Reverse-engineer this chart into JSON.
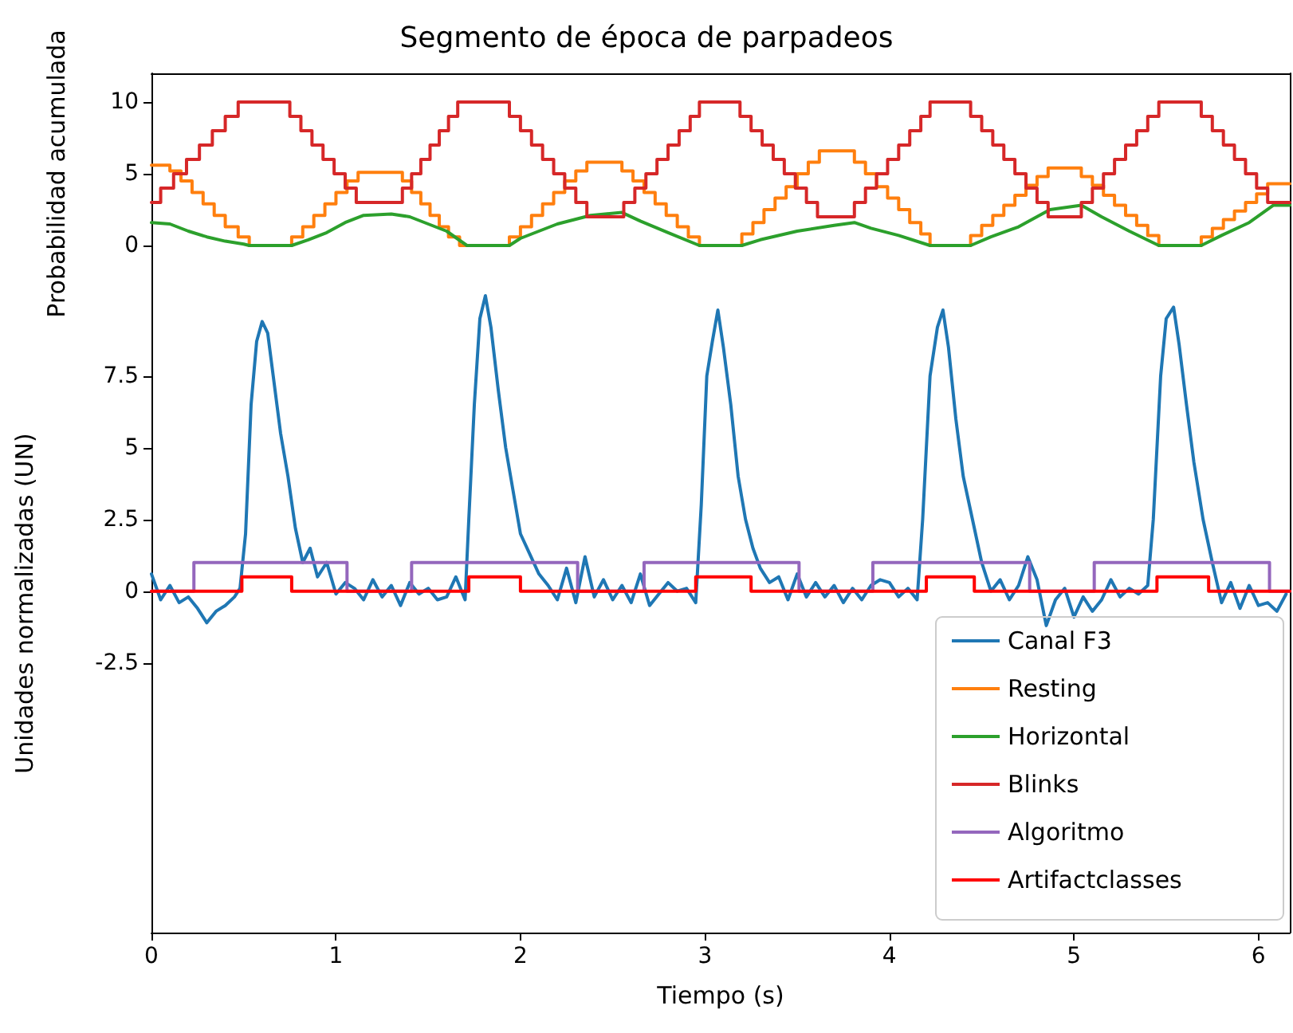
{
  "chart_data": [
    {
      "type": "step",
      "title": "Segmento de época de parpadeos",
      "ylabel": "Probabilidad acumulada",
      "xlim": [
        0,
        6.17
      ],
      "ylim": [
        -2,
        12
      ],
      "yticks": [
        0,
        5,
        10
      ],
      "tick_labels": "y",
      "grid": false,
      "legend": "bottom right",
      "marker": "none",
      "line_style": "solid",
      "series": [
        {
          "name": "Resting",
          "color": "#ff7f0e",
          "x": [
            0,
            0.1,
            0.16,
            0.22,
            0.28,
            0.34,
            0.4,
            0.47,
            0.53,
            0.76,
            0.82,
            0.88,
            0.94,
            1.0,
            1.06,
            1.12,
            1.36,
            1.41,
            1.46,
            1.51,
            1.56,
            1.61,
            1.67,
            1.94,
            2.0,
            2.06,
            2.12,
            2.18,
            2.24,
            2.3,
            2.36,
            2.55,
            2.61,
            2.67,
            2.73,
            2.79,
            2.85,
            2.91,
            2.97,
            3.2,
            3.26,
            3.32,
            3.38,
            3.44,
            3.5,
            3.56,
            3.62,
            3.81,
            3.87,
            3.93,
            3.99,
            4.05,
            4.11,
            4.17,
            4.22,
            4.44,
            4.5,
            4.56,
            4.62,
            4.68,
            4.74,
            4.8,
            4.86,
            5.04,
            5.1,
            5.16,
            5.22,
            5.28,
            5.34,
            5.4,
            5.46,
            5.69,
            5.75,
            5.81,
            5.87,
            5.93,
            5.99,
            6.05,
            6.17
          ],
          "values": [
            5.6,
            5.2,
            4.5,
            3.7,
            2.9,
            2.1,
            1.3,
            0.6,
            0,
            0.6,
            1.3,
            2.1,
            2.9,
            3.7,
            4.5,
            5.1,
            4.5,
            3.7,
            2.9,
            2.1,
            1.3,
            0.6,
            0,
            0.6,
            1.3,
            2.1,
            2.9,
            3.7,
            4.5,
            5.2,
            5.8,
            5.2,
            4.5,
            3.7,
            2.9,
            2.1,
            1.3,
            0.6,
            0,
            0.8,
            1.6,
            2.5,
            3.3,
            4.1,
            5.0,
            5.8,
            6.6,
            5.8,
            5.0,
            4.1,
            3.3,
            2.5,
            1.6,
            0.8,
            0,
            0.7,
            1.4,
            2.1,
            2.8,
            3.5,
            4.2,
            4.8,
            5.4,
            4.8,
            4.2,
            3.5,
            2.8,
            2.1,
            1.4,
            0.7,
            0,
            0.6,
            1.2,
            1.8,
            2.4,
            3.0,
            3.6,
            4.3,
            4.3
          ]
        },
        {
          "name": "Horizontal",
          "color": "#2ca02c",
          "type": "line",
          "x": [
            0,
            0.1,
            0.2,
            0.3,
            0.4,
            0.5,
            0.53,
            0.76,
            0.85,
            0.95,
            1.05,
            1.15,
            1.3,
            1.4,
            1.5,
            1.6,
            1.71,
            1.94,
            2.0,
            2.1,
            2.2,
            2.38,
            2.55,
            2.65,
            2.8,
            2.97,
            3.2,
            3.3,
            3.5,
            3.7,
            3.81,
            3.9,
            4.05,
            4.22,
            4.44,
            4.55,
            4.7,
            4.87,
            5.04,
            5.15,
            5.3,
            5.46,
            5.69,
            5.8,
            5.95,
            6.08,
            6.17
          ],
          "values": [
            1.6,
            1.5,
            1.0,
            0.6,
            0.3,
            0.1,
            0,
            0,
            0.4,
            0.9,
            1.6,
            2.1,
            2.2,
            2.0,
            1.5,
            1.0,
            0,
            0,
            0.5,
            1.0,
            1.5,
            2.1,
            2.3,
            1.7,
            0.9,
            0,
            0,
            0.4,
            1.0,
            1.4,
            1.6,
            1.2,
            0.7,
            0,
            0,
            0.6,
            1.3,
            2.5,
            2.8,
            2.0,
            1.0,
            0,
            0,
            0.7,
            1.6,
            2.8,
            2.8
          ]
        },
        {
          "name": "Blinks",
          "color": "#d62728",
          "x": [
            0,
            0.05,
            0.12,
            0.19,
            0.26,
            0.33,
            0.4,
            0.47,
            0.75,
            0.81,
            0.87,
            0.93,
            0.99,
            1.05,
            1.11,
            1.36,
            1.41,
            1.46,
            1.51,
            1.56,
            1.61,
            1.66,
            1.94,
            2.0,
            2.06,
            2.12,
            2.18,
            2.24,
            2.3,
            2.36,
            2.56,
            2.62,
            2.68,
            2.74,
            2.8,
            2.86,
            2.92,
            2.97,
            3.19,
            3.25,
            3.31,
            3.37,
            3.43,
            3.49,
            3.55,
            3.61,
            3.81,
            3.87,
            3.93,
            3.99,
            4.05,
            4.11,
            4.17,
            4.22,
            4.44,
            4.5,
            4.56,
            4.62,
            4.68,
            4.74,
            4.8,
            4.86,
            5.04,
            5.1,
            5.16,
            5.22,
            5.28,
            5.34,
            5.4,
            5.46,
            5.69,
            5.75,
            5.81,
            5.87,
            5.93,
            5.99,
            6.05,
            6.17
          ],
          "values": [
            3,
            4,
            5,
            6,
            7,
            8,
            9,
            10,
            9,
            8,
            7,
            6,
            5,
            4,
            3,
            4,
            5,
            6,
            7,
            8,
            9,
            10,
            9,
            8,
            7,
            6,
            5,
            4,
            3,
            2,
            3,
            4,
            5,
            6,
            7,
            8,
            9,
            10,
            9,
            8,
            7,
            6,
            5,
            4,
            3,
            2,
            3,
            4,
            5,
            6,
            7,
            8,
            9,
            10,
            9,
            8,
            7,
            6,
            5,
            4,
            3,
            2,
            3,
            4,
            5,
            6,
            7,
            8,
            9,
            10,
            9,
            8,
            7,
            6,
            5,
            4,
            3,
            3
          ]
        }
      ]
    },
    {
      "type": "line",
      "xlabel": "Tiempo (s)",
      "ylabel": "Unidades normalizadas (UN)",
      "xlim": [
        0,
        6.17
      ],
      "xticks": [
        0,
        1,
        2,
        3,
        4,
        5,
        6
      ],
      "ylim": [
        -11.9,
        11.05
      ],
      "yticks": [
        -2.5,
        0,
        2.5,
        5,
        7.5
      ],
      "grid": false,
      "legend": "bottom right",
      "marker": "none",
      "line_style": "solid",
      "series": [
        {
          "name": "Canal F3",
          "color": "#1f77b4",
          "x": [
            0,
            0.05,
            0.1,
            0.15,
            0.2,
            0.25,
            0.3,
            0.35,
            0.4,
            0.45,
            0.48,
            0.51,
            0.54,
            0.57,
            0.6,
            0.63,
            0.66,
            0.7,
            0.74,
            0.78,
            0.82,
            0.86,
            0.9,
            0.95,
            1.0,
            1.05,
            1.1,
            1.15,
            1.2,
            1.25,
            1.3,
            1.35,
            1.4,
            1.45,
            1.5,
            1.55,
            1.6,
            1.65,
            1.7,
            1.72,
            1.75,
            1.78,
            1.81,
            1.84,
            1.88,
            1.92,
            1.96,
            2.0,
            2.05,
            2.1,
            2.15,
            2.2,
            2.25,
            2.3,
            2.35,
            2.4,
            2.45,
            2.5,
            2.55,
            2.6,
            2.65,
            2.7,
            2.75,
            2.8,
            2.85,
            2.9,
            2.95,
            2.98,
            3.01,
            3.04,
            3.07,
            3.1,
            3.14,
            3.18,
            3.22,
            3.26,
            3.3,
            3.35,
            3.4,
            3.45,
            3.5,
            3.55,
            3.6,
            3.65,
            3.7,
            3.75,
            3.8,
            3.85,
            3.9,
            3.95,
            4.0,
            4.05,
            4.1,
            4.15,
            4.18,
            4.22,
            4.26,
            4.29,
            4.32,
            4.36,
            4.4,
            4.45,
            4.5,
            4.55,
            4.6,
            4.65,
            4.7,
            4.75,
            4.8,
            4.85,
            4.9,
            4.95,
            5.0,
            5.05,
            5.1,
            5.15,
            5.2,
            5.25,
            5.3,
            5.35,
            5.4,
            5.43,
            5.47,
            5.5,
            5.54,
            5.57,
            5.61,
            5.65,
            5.7,
            5.75,
            5.8,
            5.85,
            5.9,
            5.95,
            6.0,
            6.05,
            6.1,
            6.15
          ],
          "values": [
            0.6,
            -0.3,
            0.2,
            -0.4,
            -0.2,
            -0.6,
            -1.1,
            -0.7,
            -0.5,
            -0.2,
            0.1,
            2,
            6.5,
            8.7,
            9.4,
            9.0,
            7.5,
            5.5,
            4.0,
            2.2,
            1.0,
            1.5,
            0.5,
            1.0,
            -0.1,
            0.3,
            0.1,
            -0.3,
            0.4,
            -0.2,
            0.2,
            -0.5,
            0.3,
            -0.1,
            0.1,
            -0.3,
            -0.2,
            0.5,
            -0.3,
            2.5,
            6.5,
            9.5,
            10.3,
            9.2,
            7.0,
            5.0,
            3.5,
            2.0,
            1.3,
            0.6,
            0.2,
            -0.3,
            0.8,
            -0.4,
            1.2,
            -0.2,
            0.4,
            -0.3,
            0.2,
            -0.4,
            0.6,
            -0.5,
            -0.1,
            0.3,
            0.0,
            0.1,
            -0.4,
            3.0,
            7.5,
            8.7,
            9.8,
            8.5,
            6.5,
            4.0,
            2.5,
            1.5,
            0.8,
            0.3,
            0.5,
            -0.3,
            0.6,
            -0.2,
            0.3,
            -0.2,
            0.2,
            -0.4,
            0.1,
            -0.3,
            0.2,
            0.4,
            0.3,
            -0.2,
            0.1,
            -0.3,
            2.5,
            7.5,
            9.2,
            9.8,
            8.5,
            6.0,
            4.0,
            2.5,
            1.0,
            0.0,
            0.4,
            -0.3,
            0.2,
            1.2,
            0.4,
            -1.2,
            -0.3,
            0.1,
            -0.9,
            -0.2,
            -0.7,
            -0.3,
            0.4,
            -0.2,
            0.1,
            -0.1,
            0.2,
            2.5,
            7.5,
            9.5,
            9.9,
            8.6,
            6.5,
            4.5,
            2.5,
            1.0,
            -0.4,
            0.3,
            -0.6,
            0.2,
            -0.5,
            -0.4,
            -0.7,
            -0.1
          ]
        },
        {
          "name": "Algoritmo",
          "color": "#9467bd",
          "type": "step",
          "x": [
            0,
            0.23,
            1.06,
            1.41,
            2.31,
            2.67,
            3.51,
            3.91,
            4.76,
            5.11,
            6.06,
            6.17
          ],
          "values": [
            0,
            1,
            0,
            1,
            0,
            1,
            0,
            1,
            0,
            1,
            0,
            0
          ]
        },
        {
          "name": "Artifactclasses",
          "color": "#ff0000",
          "type": "step",
          "x": [
            0,
            0.49,
            0.76,
            1.72,
            2.0,
            2.95,
            3.25,
            4.2,
            4.46,
            5.45,
            5.73,
            6.17
          ],
          "values": [
            0,
            0.5,
            0,
            0.5,
            0,
            0.5,
            0,
            0.5,
            0,
            0.5,
            0,
            0
          ]
        }
      ]
    }
  ]
}
